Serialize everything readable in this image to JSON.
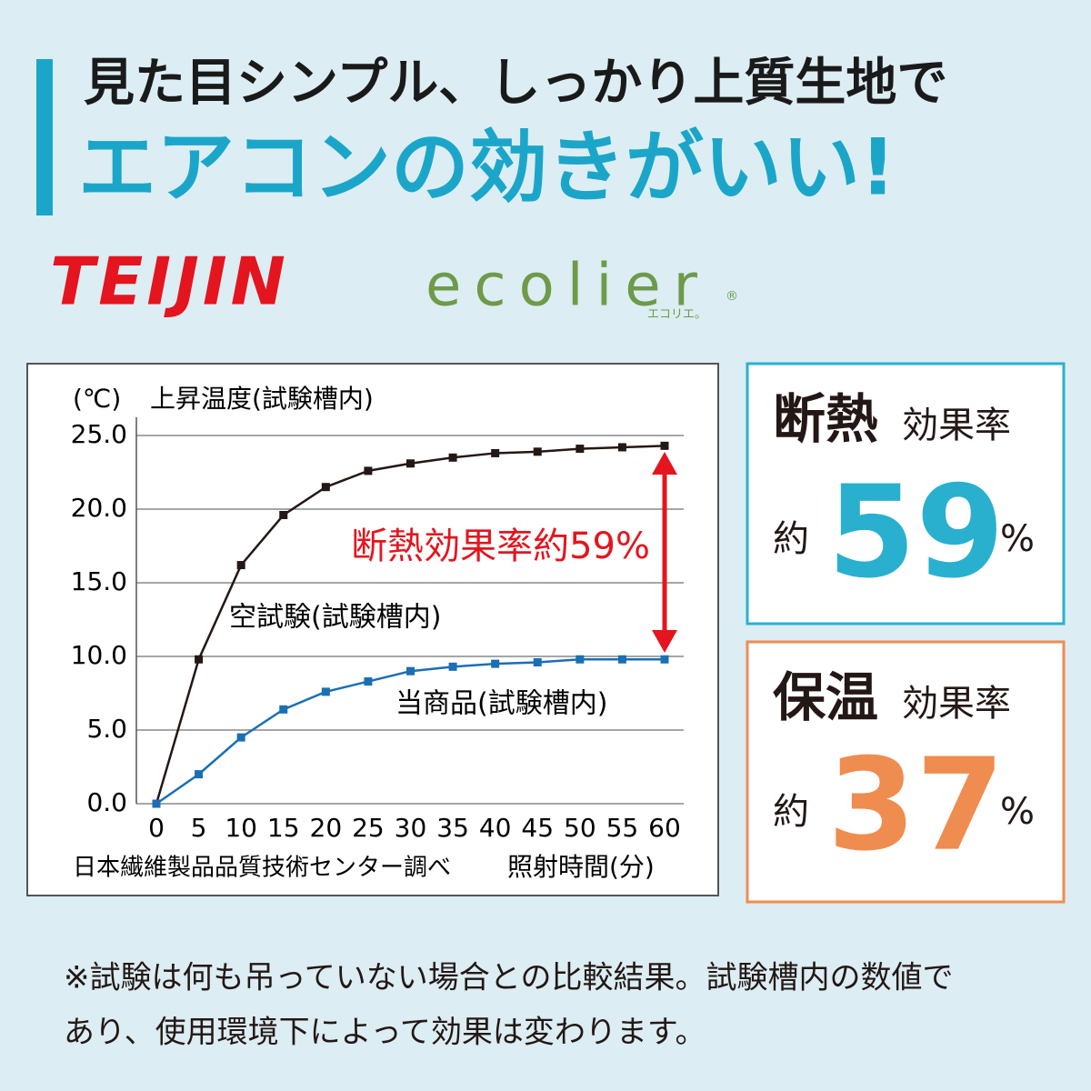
{
  "heading": {
    "line1": "見た目シンプル、しっかり上質生地で",
    "line2": "エアコンの効きがいい!"
  },
  "logo": {
    "brand": "TEIJIN",
    "product": "ecolier",
    "mark": "®",
    "kana": "エコリエ。"
  },
  "chart_data": {
    "type": "line",
    "y_unit": "(℃)",
    "y_label": "上昇温度(試験槽内)",
    "x_label": "照射時間(分)",
    "source": "日本繊維製品品質技術センター調べ",
    "annotation": "断熱効果率約59%",
    "x": [
      0,
      5,
      10,
      15,
      20,
      25,
      30,
      35,
      40,
      45,
      50,
      55,
      60
    ],
    "series": [
      {
        "name": "空試験(試験槽内)",
        "color": "#231815",
        "values": [
          0,
          9.8,
          16.2,
          19.6,
          21.5,
          22.6,
          23.1,
          23.5,
          23.8,
          23.9,
          24.1,
          24.2,
          24.3
        ]
      },
      {
        "name": "当商品(試験槽内)",
        "color": "#1a6fb5",
        "values": [
          0,
          2.0,
          4.5,
          6.4,
          7.6,
          8.3,
          9.0,
          9.3,
          9.5,
          9.6,
          9.8,
          9.8,
          9.8
        ]
      }
    ],
    "xlim": [
      0,
      60
    ],
    "xticks": [
      0,
      5,
      10,
      15,
      20,
      25,
      30,
      35,
      40,
      45,
      50,
      55,
      60
    ],
    "ylim": [
      0,
      25
    ],
    "yticks": [
      {
        "value": 0,
        "label": "0.0"
      },
      {
        "value": 5,
        "label": "5.0"
      },
      {
        "value": 10,
        "label": "10.0"
      },
      {
        "value": 15,
        "label": "15.0"
      },
      {
        "value": 20,
        "label": "20.0"
      },
      {
        "value": 25,
        "label": "25.0"
      }
    ],
    "grid": true
  },
  "stats": [
    {
      "label": "断熱",
      "sub": "効果率",
      "prefix": "約",
      "value": 59,
      "unit": "%"
    },
    {
      "label": "保温",
      "sub": "効果率",
      "prefix": "約",
      "value": 37,
      "unit": "%"
    }
  ],
  "footnote": [
    "※試験は何も吊っていない場合との比較結果。試験槽内の数値で",
    "あり、使用環境下によって効果は変わります。"
  ]
}
